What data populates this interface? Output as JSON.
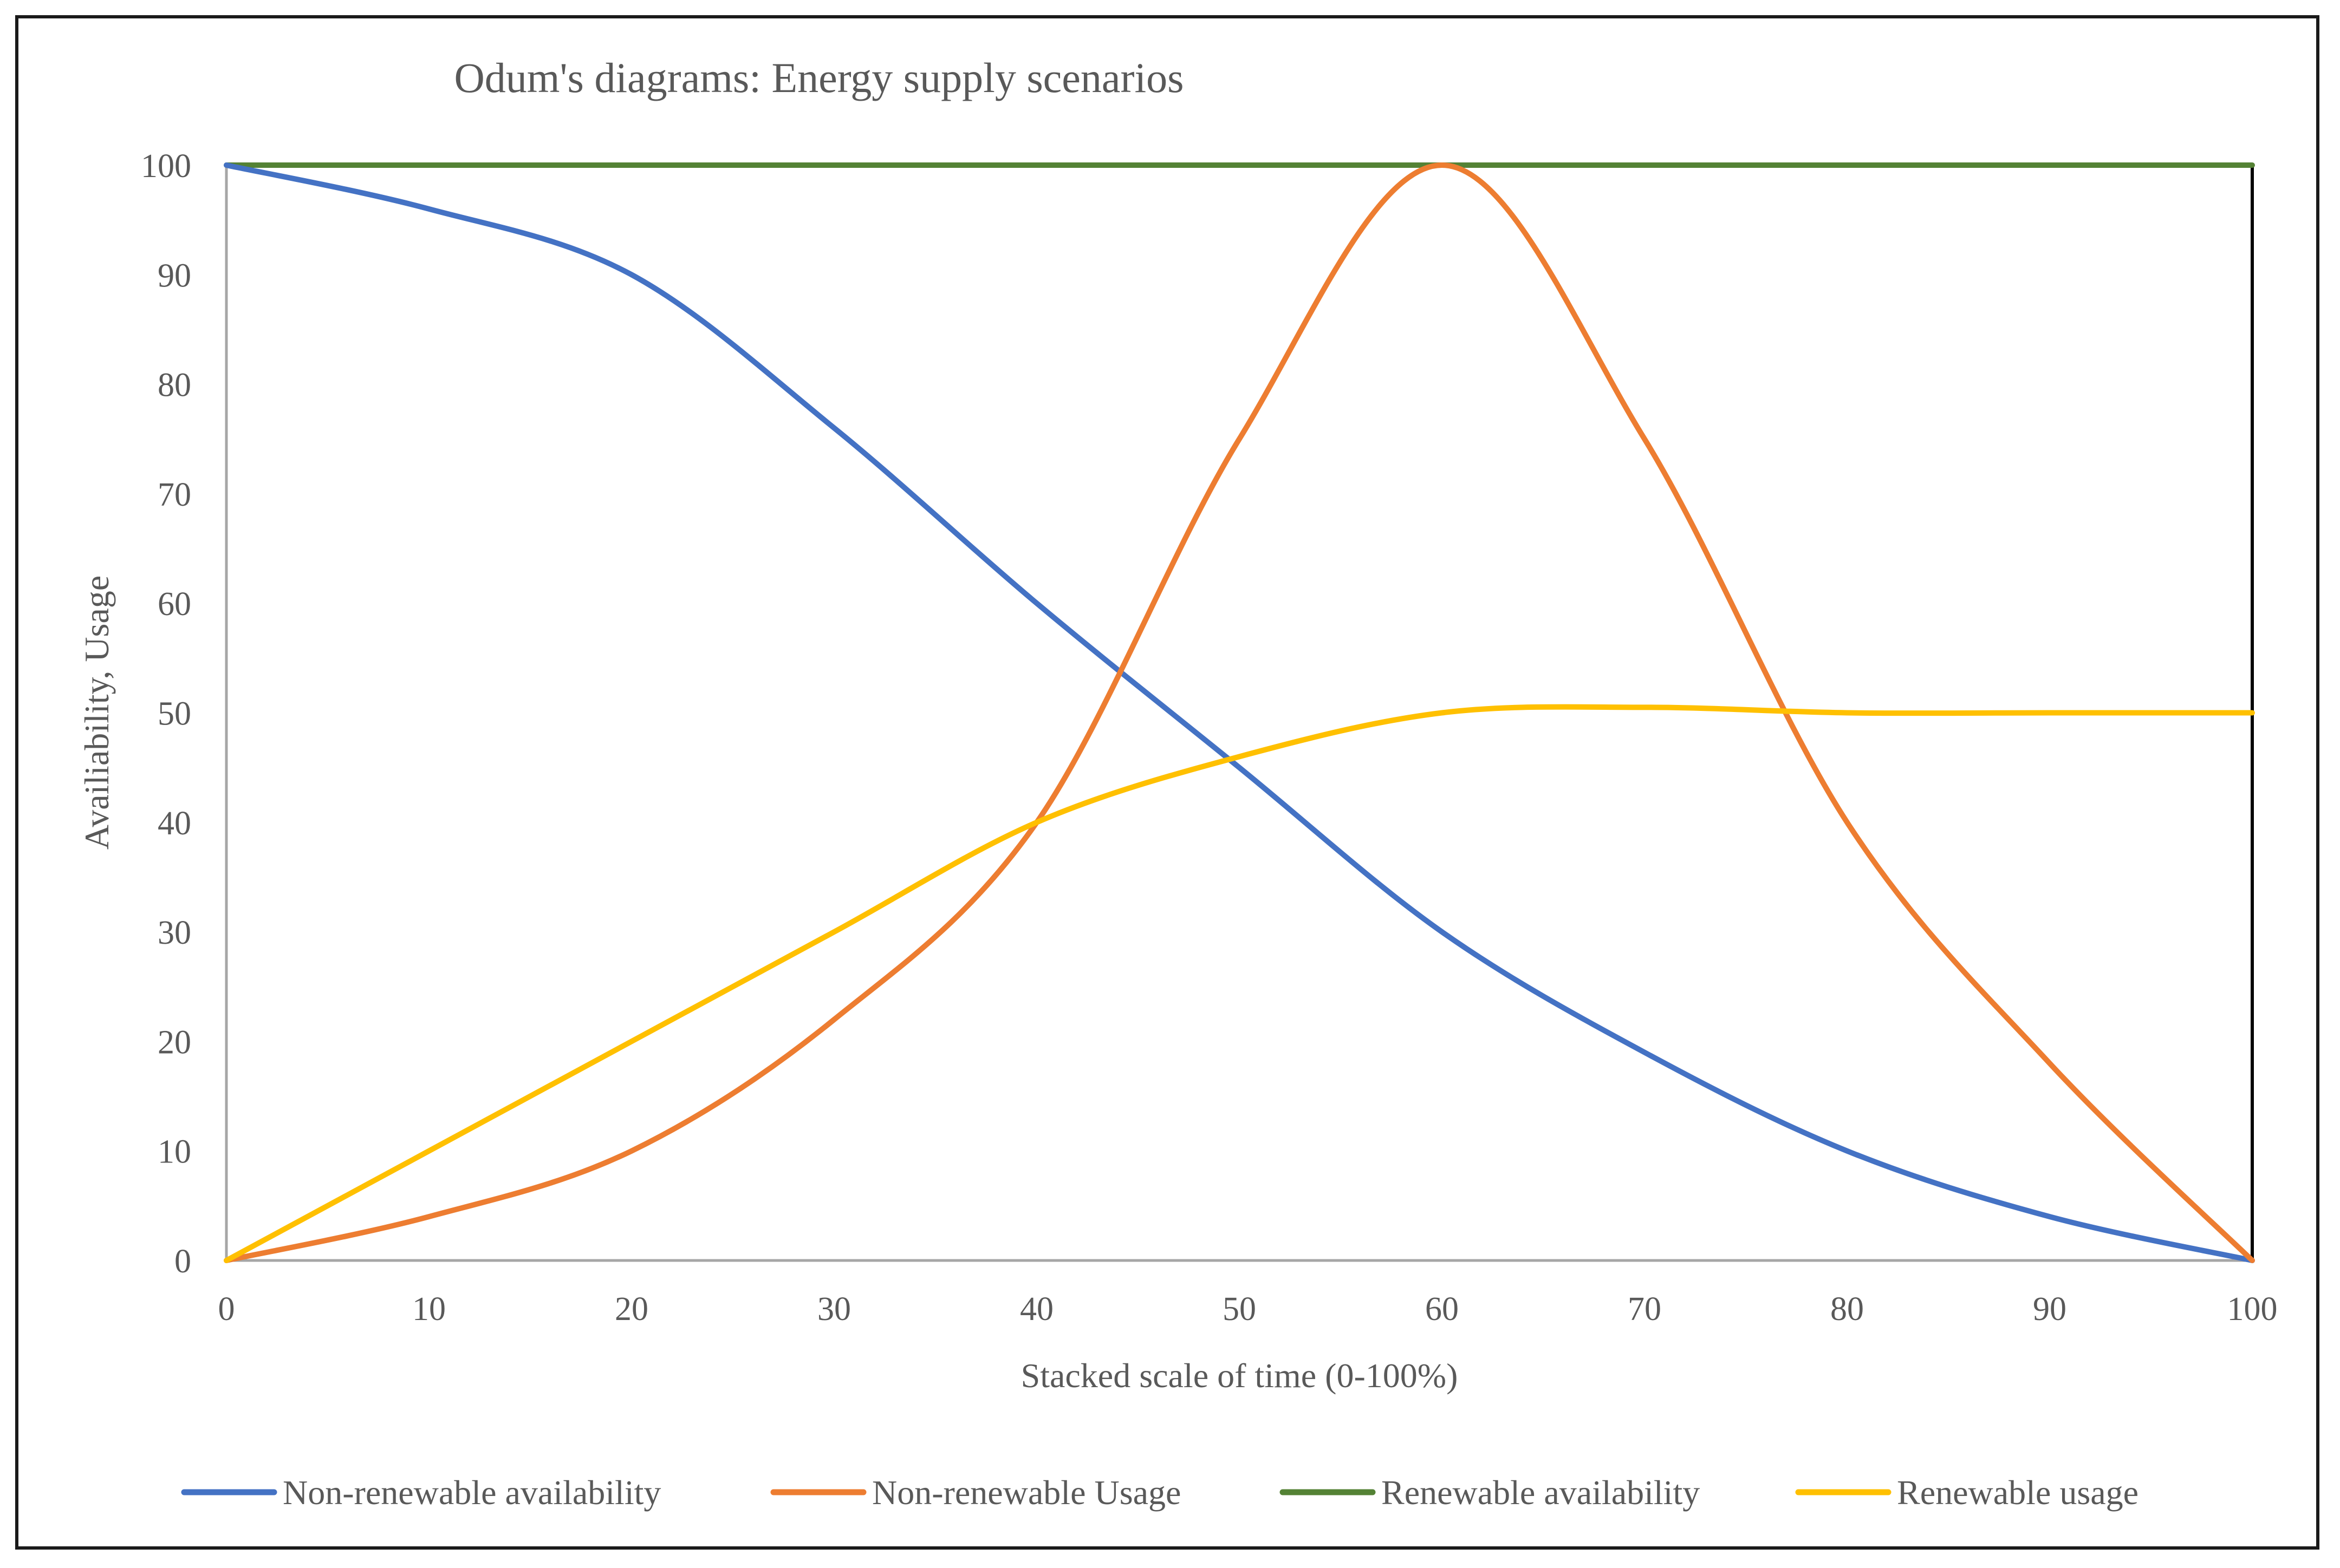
{
  "chart_data": {
    "type": "line",
    "title": "Odum's diagrams: Energy supply scenarios",
    "xlabel": "Stacked scale of time (0-100%)",
    "ylabel": "Availiability, Usage",
    "xlim": [
      0,
      100
    ],
    "ylim": [
      0,
      100
    ],
    "x_ticks": [
      "0",
      "10",
      "20",
      "30",
      "40",
      "50",
      "60",
      "70",
      "80",
      "90",
      "100"
    ],
    "y_ticks": [
      "0",
      "10",
      "20",
      "30",
      "40",
      "50",
      "60",
      "70",
      "80",
      "90",
      "100"
    ],
    "grid": false,
    "legend_position": "bottom",
    "series": [
      {
        "name": "Non-renewable availability",
        "color": "#4472C4",
        "x": [
          0,
          10,
          20,
          30,
          40,
          50,
          60,
          70,
          80,
          90,
          100
        ],
        "values": [
          100,
          96,
          90,
          76,
          60,
          45,
          30,
          19,
          10,
          4,
          0
        ]
      },
      {
        "name": "Non-renewable Usage",
        "color": "#ED7D31",
        "x": [
          0,
          10,
          20,
          30,
          40,
          50,
          60,
          70,
          80,
          90,
          100
        ],
        "values": [
          0,
          4,
          10,
          22,
          40,
          75,
          100,
          75,
          40,
          18,
          0
        ]
      },
      {
        "name": "Renewable availability",
        "color": "#548235",
        "x": [
          0,
          10,
          20,
          30,
          40,
          50,
          60,
          70,
          80,
          90,
          100
        ],
        "values": [
          100,
          100,
          100,
          100,
          100,
          100,
          100,
          100,
          100,
          100,
          100
        ]
      },
      {
        "name": "Renewable usage",
        "color": "#FFC000",
        "x": [
          0,
          10,
          20,
          30,
          40,
          50,
          60,
          70,
          80,
          90,
          100
        ],
        "values": [
          0,
          10,
          20,
          30,
          40,
          46,
          50,
          50.5,
          50,
          50,
          50
        ]
      }
    ]
  }
}
